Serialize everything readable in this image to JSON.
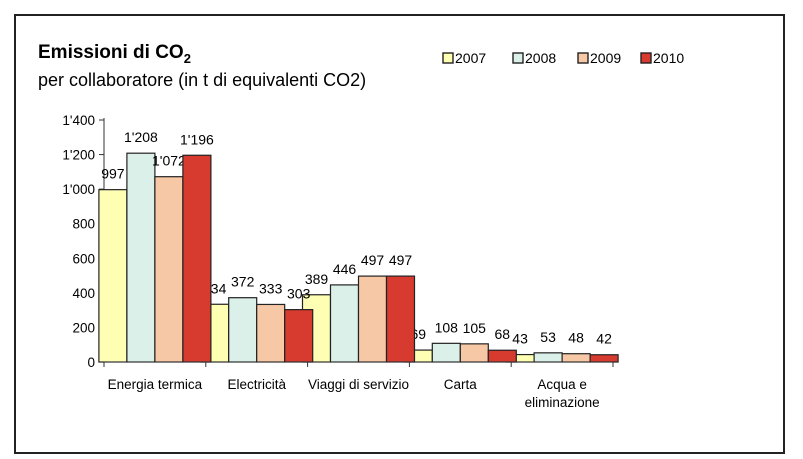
{
  "chart_data": {
    "type": "bar",
    "title": "Emissioni di CO",
    "title_subscript": "2",
    "subtitle": "per collaboratore (in t di equivalenti CO2)",
    "categories": [
      [
        "Energia termica"
      ],
      [
        "Electricità"
      ],
      [
        "Viaggi di servizio"
      ],
      [
        "Carta"
      ],
      [
        "Acqua e",
        "eliminazione"
      ]
    ],
    "series": [
      {
        "name": "2007",
        "color": "#FFFFB3",
        "values": [
          997,
          334,
          389,
          69,
          43
        ]
      },
      {
        "name": "2008",
        "color": "#DCF0EA",
        "values": [
          1208,
          372,
          446,
          108,
          53
        ]
      },
      {
        "name": "2009",
        "color": "#F7C8A6",
        "values": [
          1072,
          333,
          497,
          105,
          48
        ]
      },
      {
        "name": "2010",
        "color": "#D73A2E",
        "values": [
          1196,
          303,
          497,
          68,
          42
        ]
      }
    ],
    "data_labels": [
      [
        "997",
        "334",
        "389",
        "69",
        "43"
      ],
      [
        "1'208",
        "372",
        "446",
        "108",
        "53"
      ],
      [
        "1'072",
        "333",
        "497",
        "105",
        "48"
      ],
      [
        "1'196",
        "303",
        "497",
        "68",
        "42"
      ]
    ],
    "yticks": [
      {
        "value": 0,
        "label": "0"
      },
      {
        "value": 200,
        "label": "200"
      },
      {
        "value": 400,
        "label": "400"
      },
      {
        "value": 600,
        "label": "600"
      },
      {
        "value": 800,
        "label": "800"
      },
      {
        "value": 1000,
        "label": "1'000"
      },
      {
        "value": 1200,
        "label": "1'200"
      },
      {
        "value": 1400,
        "label": "1'400"
      }
    ],
    "ylim": [
      0,
      1400
    ],
    "grid": false,
    "legend_position": "top-right"
  }
}
